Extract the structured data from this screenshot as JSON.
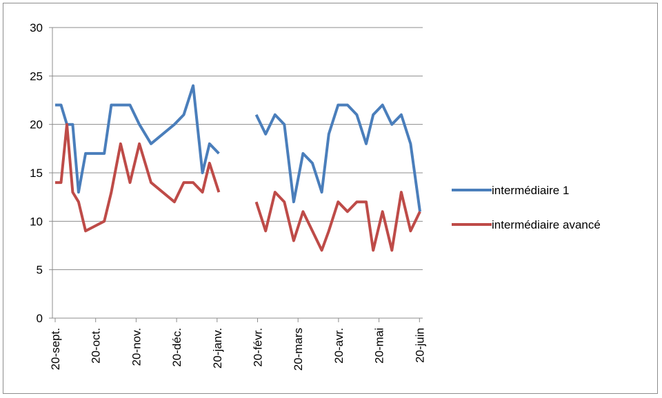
{
  "chart_data": {
    "type": "line",
    "ylim": [
      0,
      30
    ],
    "y_ticks": [
      0,
      5,
      10,
      15,
      20,
      25,
      30
    ],
    "x_tick_labels": [
      "20-sept.",
      "20-oct.",
      "20-nov.",
      "20-déc.",
      "20-janv.",
      "20-févr.",
      "20-mars",
      "20-avr.",
      "20-mai",
      "20-juin"
    ],
    "grid": true,
    "legend_position": "right",
    "series": [
      {
        "name": "intermédiaire 1",
        "color": "#4a7ebb",
        "points": [
          [
            0,
            22
          ],
          [
            2.5,
            22
          ],
          [
            5,
            20
          ],
          [
            7.5,
            20
          ],
          [
            10,
            13
          ],
          [
            13,
            17
          ],
          [
            17,
            17
          ],
          [
            21,
            17
          ],
          [
            24,
            22
          ],
          [
            28,
            22
          ],
          [
            32,
            22
          ],
          [
            36,
            20
          ],
          [
            41,
            18
          ],
          [
            51,
            20
          ],
          [
            55,
            21
          ],
          [
            59,
            24
          ],
          [
            63,
            15
          ],
          [
            66,
            18
          ],
          [
            70,
            17
          ],
          null,
          [
            86,
            21
          ],
          [
            90,
            19
          ],
          [
            94,
            21
          ],
          [
            98,
            20
          ],
          [
            102,
            12
          ],
          [
            106,
            17
          ],
          [
            110,
            16
          ],
          [
            114,
            13
          ],
          [
            117,
            19
          ],
          [
            121,
            22
          ],
          [
            125,
            22
          ],
          [
            129,
            21
          ],
          [
            133,
            18
          ],
          [
            136,
            21
          ],
          [
            140,
            22
          ],
          [
            144,
            20
          ],
          [
            148,
            21
          ],
          [
            152,
            18
          ],
          [
            156,
            11
          ]
        ]
      },
      {
        "name": "intermédiaire avancé",
        "color": "#be4b48",
        "points": [
          [
            0,
            14
          ],
          [
            2.5,
            14
          ],
          [
            5,
            20
          ],
          [
            7.5,
            13
          ],
          [
            10,
            12
          ],
          [
            13,
            9
          ],
          [
            17,
            9.5
          ],
          [
            21,
            10
          ],
          [
            24,
            13
          ],
          [
            28,
            18
          ],
          [
            32,
            14
          ],
          [
            36,
            18
          ],
          [
            41,
            14
          ],
          [
            51,
            12
          ],
          [
            55,
            14
          ],
          [
            59,
            14
          ],
          [
            63,
            13
          ],
          [
            66,
            16
          ],
          [
            70,
            13
          ],
          null,
          [
            86,
            12
          ],
          [
            90,
            9
          ],
          [
            94,
            13
          ],
          [
            98,
            12
          ],
          [
            102,
            8
          ],
          [
            106,
            11
          ],
          [
            110,
            9
          ],
          [
            114,
            7
          ],
          [
            117,
            9
          ],
          [
            121,
            12
          ],
          [
            125,
            11
          ],
          [
            129,
            12
          ],
          [
            133,
            12
          ],
          [
            136,
            7
          ],
          [
            140,
            11
          ],
          [
            144,
            7
          ],
          [
            148,
            13
          ],
          [
            152,
            9
          ],
          [
            156,
            11
          ]
        ]
      }
    ]
  }
}
